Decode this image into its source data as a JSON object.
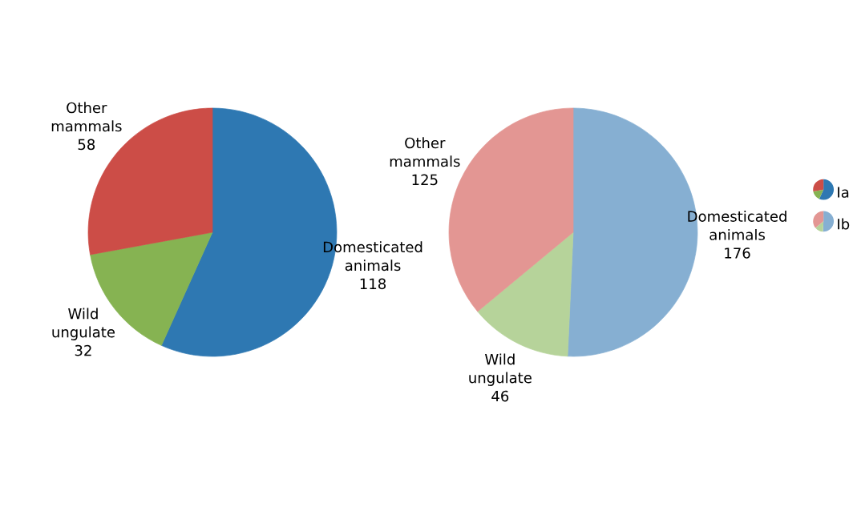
{
  "chart_data": [
    {
      "type": "pie",
      "categories": [
        "Domesticated animals",
        "Wild ungulate",
        "Other mammals"
      ],
      "series": [
        {
          "name": "Ia",
          "values": [
            118,
            32,
            58
          ],
          "colors": [
            "#2e78b2",
            "#86b352",
            "#cc4d47"
          ]
        }
      ],
      "data_labels": true,
      "legend": "right"
    },
    {
      "type": "pie",
      "categories": [
        "Domesticated animals",
        "Wild ungulate",
        "Other mammals"
      ],
      "series": [
        {
          "name": "Ib",
          "values": [
            176,
            46,
            125
          ],
          "colors": [
            "#86afd2",
            "#b6d39a",
            "#e39693"
          ]
        }
      ],
      "data_labels": true,
      "legend": "right"
    }
  ]
}
